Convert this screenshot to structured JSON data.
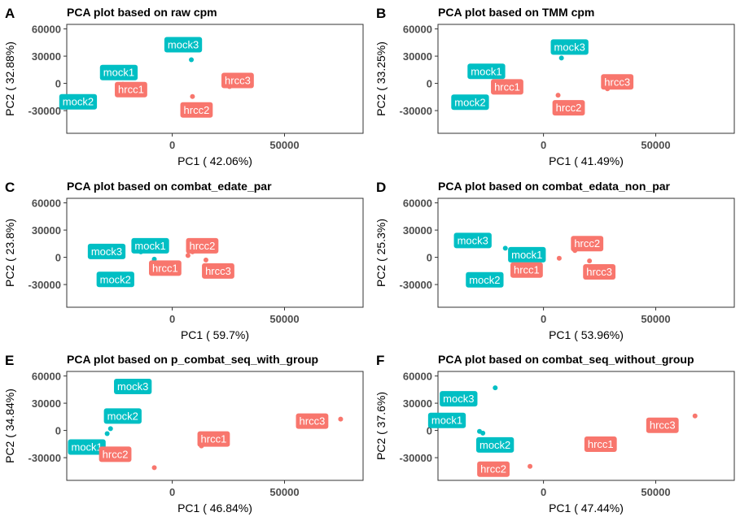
{
  "colors": {
    "mock": "#00BFC4",
    "hrcc": "#F8766D"
  },
  "chart_data": [
    {
      "panel": "A",
      "type": "scatter",
      "title": "PCA plot based on raw cpm",
      "xlabel": "PC1 ( 42.06%)",
      "ylabel": "PC2 ( 32.88%)",
      "xlim": [
        -47000,
        85000
      ],
      "ylim": [
        -55000,
        65000
      ],
      "xticks": [
        0,
        50000
      ],
      "yticks": [
        -30000,
        0,
        30000,
        60000
      ],
      "points": [
        {
          "label": "mock1",
          "group": "mock",
          "x": -22000,
          "y": -1000
        },
        {
          "label": "mock2",
          "group": "mock",
          "x": -22000,
          "y": -1000
        },
        {
          "label": "mock3",
          "group": "mock",
          "x": 8500,
          "y": 26000
        },
        {
          "label": "hrcc1",
          "group": "hrcc",
          "x": -22000,
          "y": -1000
        },
        {
          "label": "hrcc2",
          "group": "hrcc",
          "x": 9000,
          "y": -14500
        },
        {
          "label": "hrcc3",
          "group": "hrcc",
          "x": 25500,
          "y": -3500
        }
      ]
    },
    {
      "panel": "B",
      "type": "scatter",
      "title": "PCA plot based on TMM cpm",
      "xlabel": "PC1 ( 41.49%)",
      "ylabel": "PC2 ( 33.25%)",
      "xlim": [
        -47000,
        85000
      ],
      "ylim": [
        -55000,
        65000
      ],
      "xticks": [
        0,
        50000
      ],
      "yticks": [
        -30000,
        0,
        30000,
        60000
      ],
      "points": [
        {
          "label": "mock1",
          "group": "mock",
          "x": -20000,
          "y": -1500
        },
        {
          "label": "mock2",
          "group": "mock",
          "x": -20000,
          "y": -1500
        },
        {
          "label": "mock3",
          "group": "mock",
          "x": 8000,
          "y": 28000
        },
        {
          "label": "hrcc1",
          "group": "hrcc",
          "x": -18000,
          "y": 2000
        },
        {
          "label": "hrcc2",
          "group": "hrcc",
          "x": 6500,
          "y": -13000
        },
        {
          "label": "hrcc3",
          "group": "hrcc",
          "x": 28500,
          "y": -6000
        }
      ]
    },
    {
      "panel": "C",
      "type": "scatter",
      "title": "PCA plot based on combat_edate_par",
      "xlabel": "PC1 ( 59.7%)",
      "ylabel": "PC2 ( 23.8%)",
      "xlim": [
        -47000,
        85000
      ],
      "ylim": [
        -55000,
        65000
      ],
      "xticks": [
        0,
        50000
      ],
      "yticks": [
        -30000,
        0,
        30000,
        60000
      ],
      "points": [
        {
          "label": "mock1",
          "group": "mock",
          "x": -8000,
          "y": -2000
        },
        {
          "label": "mock2",
          "group": "mock",
          "x": -9000,
          "y": -6000
        },
        {
          "label": "mock3",
          "group": "mock",
          "x": -14000,
          "y": 6000
        },
        {
          "label": "hrcc1",
          "group": "hrcc",
          "x": 7000,
          "y": 2000
        },
        {
          "label": "hrcc2",
          "group": "hrcc",
          "x": 9000,
          "y": 6000
        },
        {
          "label": "hrcc3",
          "group": "hrcc",
          "x": 15000,
          "y": -3000
        }
      ]
    },
    {
      "panel": "D",
      "type": "scatter",
      "title": "PCA plot based on combat_edata_non_par",
      "xlabel": "PC1 ( 53.96%)",
      "ylabel": "PC2 ( 25.3%)",
      "xlim": [
        -47000,
        85000
      ],
      "ylim": [
        -55000,
        65000
      ],
      "xticks": [
        0,
        50000
      ],
      "yticks": [
        -30000,
        0,
        30000,
        60000
      ],
      "points": [
        {
          "label": "mock1",
          "group": "mock",
          "x": -11000,
          "y": -2000
        },
        {
          "label": "mock2",
          "group": "mock",
          "x": -13500,
          "y": -10000
        },
        {
          "label": "mock3",
          "group": "mock",
          "x": -17000,
          "y": 10000
        },
        {
          "label": "hrcc1",
          "group": "hrcc",
          "x": 7000,
          "y": -1000
        },
        {
          "label": "hrcc2",
          "group": "hrcc",
          "x": 14000,
          "y": 7500
        },
        {
          "label": "hrcc3",
          "group": "hrcc",
          "x": 20500,
          "y": -4000
        }
      ]
    },
    {
      "panel": "E",
      "type": "scatter",
      "title": "PCA plot based on p_combat_seq_with_group",
      "xlabel": "PC1 ( 46.84%)",
      "ylabel": "PC2 ( 34.84%)",
      "xlim": [
        -47000,
        85000
      ],
      "ylim": [
        -55000,
        65000
      ],
      "xticks": [
        0,
        50000
      ],
      "yticks": [
        -30000,
        0,
        30000,
        60000
      ],
      "points": [
        {
          "label": "mock1",
          "group": "mock",
          "x": -29000,
          "y": -3500
        },
        {
          "label": "mock2",
          "group": "mock",
          "x": -27500,
          "y": 2000
        },
        {
          "label": "mock3",
          "group": "mock",
          "x": -23000,
          "y": 48000
        },
        {
          "label": "hrcc1",
          "group": "hrcc",
          "x": 13000,
          "y": -17000
        },
        {
          "label": "hrcc2",
          "group": "hrcc",
          "x": -8000,
          "y": -41000
        },
        {
          "label": "hrcc3",
          "group": "hrcc",
          "x": 75000,
          "y": 12500
        }
      ]
    },
    {
      "panel": "F",
      "type": "scatter",
      "title": "PCA plot based on combat_seq_without_group",
      "xlabel": "PC1 ( 47.44%)",
      "ylabel": "PC2 ( 37.6%)",
      "xlim": [
        -47000,
        85000
      ],
      "ylim": [
        -55000,
        65000
      ],
      "xticks": [
        0,
        50000
      ],
      "yticks": [
        -30000,
        0,
        30000,
        60000
      ],
      "points": [
        {
          "label": "mock1",
          "group": "mock",
          "x": -28500,
          "y": -1000
        },
        {
          "label": "mock2",
          "group": "mock",
          "x": -27000,
          "y": -3000
        },
        {
          "label": "mock3",
          "group": "mock",
          "x": -21500,
          "y": 47000
        },
        {
          "label": "hrcc1",
          "group": "hrcc",
          "x": 20000,
          "y": -21000
        },
        {
          "label": "hrcc2",
          "group": "hrcc",
          "x": -6000,
          "y": -39500
        },
        {
          "label": "hrcc3",
          "group": "hrcc",
          "x": 67500,
          "y": 16000
        }
      ]
    }
  ]
}
